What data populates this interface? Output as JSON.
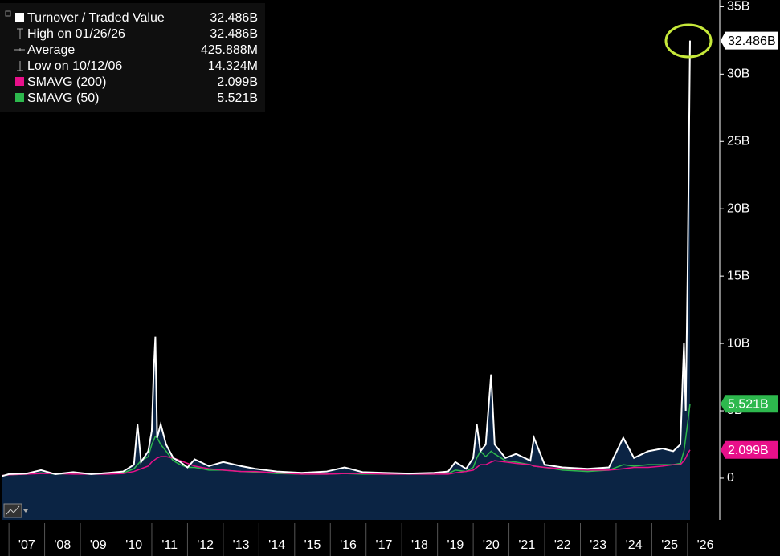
{
  "chart_data": {
    "type": "line",
    "area_color": "#0b2444",
    "x": [
      2006.8,
      2007.0,
      2007.5,
      2007.9,
      2008.3,
      2008.8,
      2009.3,
      2009.8,
      2010.2,
      2010.5,
      2010.6,
      2010.7,
      2010.9,
      2011.0,
      2011.05,
      2011.1,
      2011.15,
      2011.25,
      2011.4,
      2011.6,
      2011.8,
      2012.0,
      2012.2,
      2012.6,
      2013.0,
      2013.5,
      2013.9,
      2014.5,
      2015.2,
      2015.9,
      2016.4,
      2016.9,
      2017.5,
      2018.2,
      2018.9,
      2019.3,
      2019.5,
      2019.8,
      2020.0,
      2020.1,
      2020.2,
      2020.35,
      2020.5,
      2020.6,
      2020.9,
      2021.2,
      2021.6,
      2021.7,
      2022.0,
      2022.5,
      2023.2,
      2023.8,
      2024.2,
      2024.5,
      2024.9,
      2025.3,
      2025.6,
      2025.8,
      2025.9,
      2025.95,
      2026.0,
      2026.07
    ],
    "series": [
      {
        "name": "Turnover / Traded Value",
        "color": "#ffffff",
        "legend_value": "32.486B",
        "values": [
          0.15,
          0.3,
          0.35,
          0.6,
          0.3,
          0.45,
          0.3,
          0.4,
          0.5,
          1.0,
          4.0,
          1.2,
          2.0,
          3.5,
          7.7,
          10.5,
          3.0,
          4.0,
          2.5,
          1.5,
          1.2,
          0.8,
          1.4,
          0.9,
          1.2,
          0.9,
          0.7,
          0.5,
          0.4,
          0.5,
          0.8,
          0.45,
          0.4,
          0.35,
          0.4,
          0.5,
          1.2,
          0.7,
          1.5,
          4.0,
          2.0,
          2.5,
          7.7,
          2.5,
          1.5,
          1.8,
          1.3,
          3.0,
          1.0,
          0.8,
          0.7,
          0.8,
          3.0,
          1.5,
          2.0,
          2.2,
          2.0,
          2.5,
          10.0,
          5.0,
          14.7,
          32.486
        ]
      },
      {
        "name": "SMAVG (200)",
        "color": "#e8108a",
        "legend_value": "2.099B",
        "values": [
          0.2,
          0.25,
          0.3,
          0.35,
          0.35,
          0.3,
          0.3,
          0.3,
          0.35,
          0.5,
          0.6,
          0.7,
          0.9,
          1.2,
          1.3,
          1.4,
          1.5,
          1.6,
          1.6,
          1.5,
          1.3,
          1.1,
          0.9,
          0.7,
          0.6,
          0.5,
          0.5,
          0.4,
          0.3,
          0.3,
          0.35,
          0.35,
          0.3,
          0.3,
          0.3,
          0.3,
          0.4,
          0.5,
          0.6,
          0.8,
          1.0,
          1.0,
          1.2,
          1.3,
          1.2,
          1.1,
          1.0,
          0.9,
          0.8,
          0.7,
          0.6,
          0.6,
          0.7,
          0.8,
          0.8,
          0.9,
          1.0,
          1.0,
          1.3,
          1.5,
          1.8,
          2.099
        ]
      },
      {
        "name": "SMAVG (50)",
        "color": "#2db84d",
        "legend_value": "5.521B",
        "values": [
          0.2,
          0.25,
          0.3,
          0.4,
          0.3,
          0.35,
          0.3,
          0.35,
          0.4,
          0.7,
          1.0,
          1.3,
          1.6,
          2.5,
          2.8,
          3.1,
          3.0,
          2.5,
          2.0,
          1.3,
          1.0,
          0.8,
          0.8,
          0.6,
          0.6,
          0.5,
          0.45,
          0.35,
          0.3,
          0.3,
          0.35,
          0.3,
          0.3,
          0.3,
          0.3,
          0.35,
          0.6,
          0.5,
          0.8,
          1.5,
          2.0,
          1.6,
          2.0,
          1.8,
          1.3,
          1.2,
          1.0,
          0.9,
          0.8,
          0.6,
          0.5,
          0.6,
          1.0,
          0.9,
          1.0,
          1.0,
          1.0,
          1.1,
          2.0,
          3.0,
          4.0,
          5.521
        ]
      }
    ],
    "stats": [
      {
        "label": "High on 01/26/26",
        "value": "32.486B"
      },
      {
        "label": "Average",
        "value": "425.888M"
      },
      {
        "label": "Low on 10/12/06",
        "value": "14.324M"
      }
    ],
    "xlim": [
      2006.75,
      2026.88
    ],
    "xticks": [
      {
        "value": 2007.5,
        "label": "'07"
      },
      {
        "value": 2008.5,
        "label": "'08"
      },
      {
        "value": 2009.5,
        "label": "'09"
      },
      {
        "value": 2010.5,
        "label": "'10"
      },
      {
        "value": 2011.5,
        "label": "'11"
      },
      {
        "value": 2012.5,
        "label": "'12"
      },
      {
        "value": 2013.5,
        "label": "'13"
      },
      {
        "value": 2014.5,
        "label": "'14"
      },
      {
        "value": 2015.5,
        "label": "'15"
      },
      {
        "value": 2016.5,
        "label": "'16"
      },
      {
        "value": 2017.5,
        "label": "'17"
      },
      {
        "value": 2018.5,
        "label": "'18"
      },
      {
        "value": 2019.5,
        "label": "'19"
      },
      {
        "value": 2020.5,
        "label": "'20"
      },
      {
        "value": 2021.5,
        "label": "'21"
      },
      {
        "value": 2022.5,
        "label": "'22"
      },
      {
        "value": 2023.5,
        "label": "'23"
      },
      {
        "value": 2024.5,
        "label": "'24"
      },
      {
        "value": 2025.5,
        "label": "'25"
      },
      {
        "value": 2026.5,
        "label": "'26"
      }
    ],
    "ylim": [
      -3.1,
      35.5
    ],
    "yticks": [
      0,
      {
        "value": 5,
        "label": "5B"
      },
      {
        "value": 10,
        "label": "10B"
      },
      {
        "value": 15,
        "label": "15B"
      },
      {
        "value": 20,
        "label": "20B"
      },
      {
        "value": 25,
        "label": "25B"
      },
      {
        "value": 30,
        "label": "30B"
      },
      {
        "value": 35,
        "label": "35B"
      }
    ]
  }
}
